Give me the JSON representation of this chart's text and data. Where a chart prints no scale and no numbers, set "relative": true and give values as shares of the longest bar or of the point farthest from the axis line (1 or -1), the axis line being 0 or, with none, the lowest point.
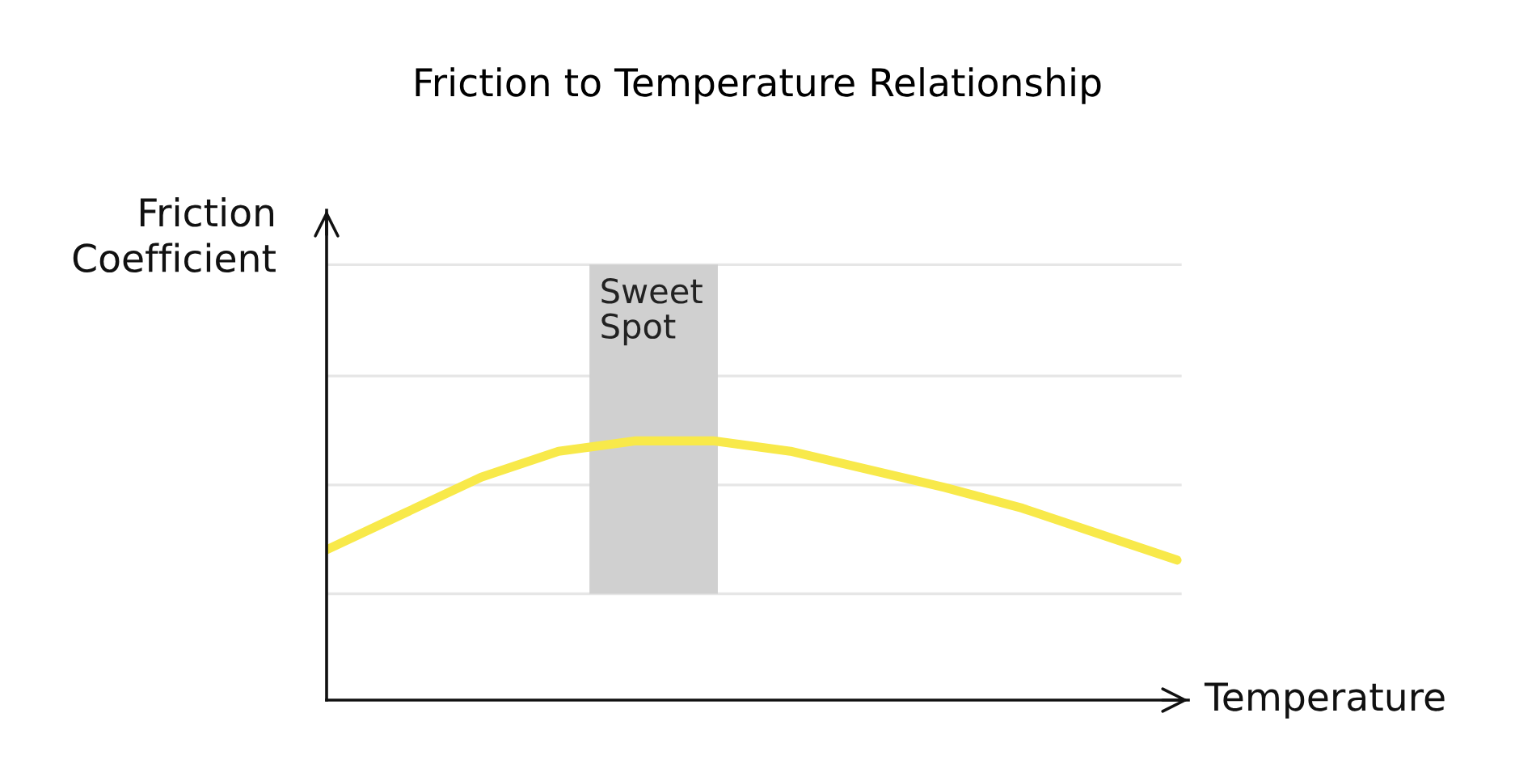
{
  "chart_data": {
    "type": "line",
    "title": "Friction to Temperature Relationship",
    "xlabel": "Temperature",
    "ylabel": "Friction\nCoefficient",
    "relative": true,
    "marker": "none",
    "ref_lines": [
      {
        "axis": "y",
        "value": 0.41,
        "color": "#e6e6e6"
      },
      {
        "axis": "y",
        "value": 0.83,
        "color": "#e6e6e6"
      },
      {
        "axis": "y",
        "value": 1.25,
        "color": "#e6e6e6"
      },
      {
        "axis": "y",
        "value": 1.68,
        "color": "#e6e6e6"
      }
    ],
    "line_style": "solid",
    "categories": [
      null,
      null,
      null,
      null,
      null,
      null,
      null,
      null,
      null,
      null,
      null,
      null
    ],
    "series": [
      {
        "color": "#f8e94a",
        "values": [
          0.58,
          0.72,
          0.86,
          0.96,
          1,
          1,
          0.96,
          0.89,
          0.82,
          0.74,
          0.64,
          0.54
        ]
      }
    ],
    "annotations": [
      "Sweet\nSpot"
    ]
  }
}
